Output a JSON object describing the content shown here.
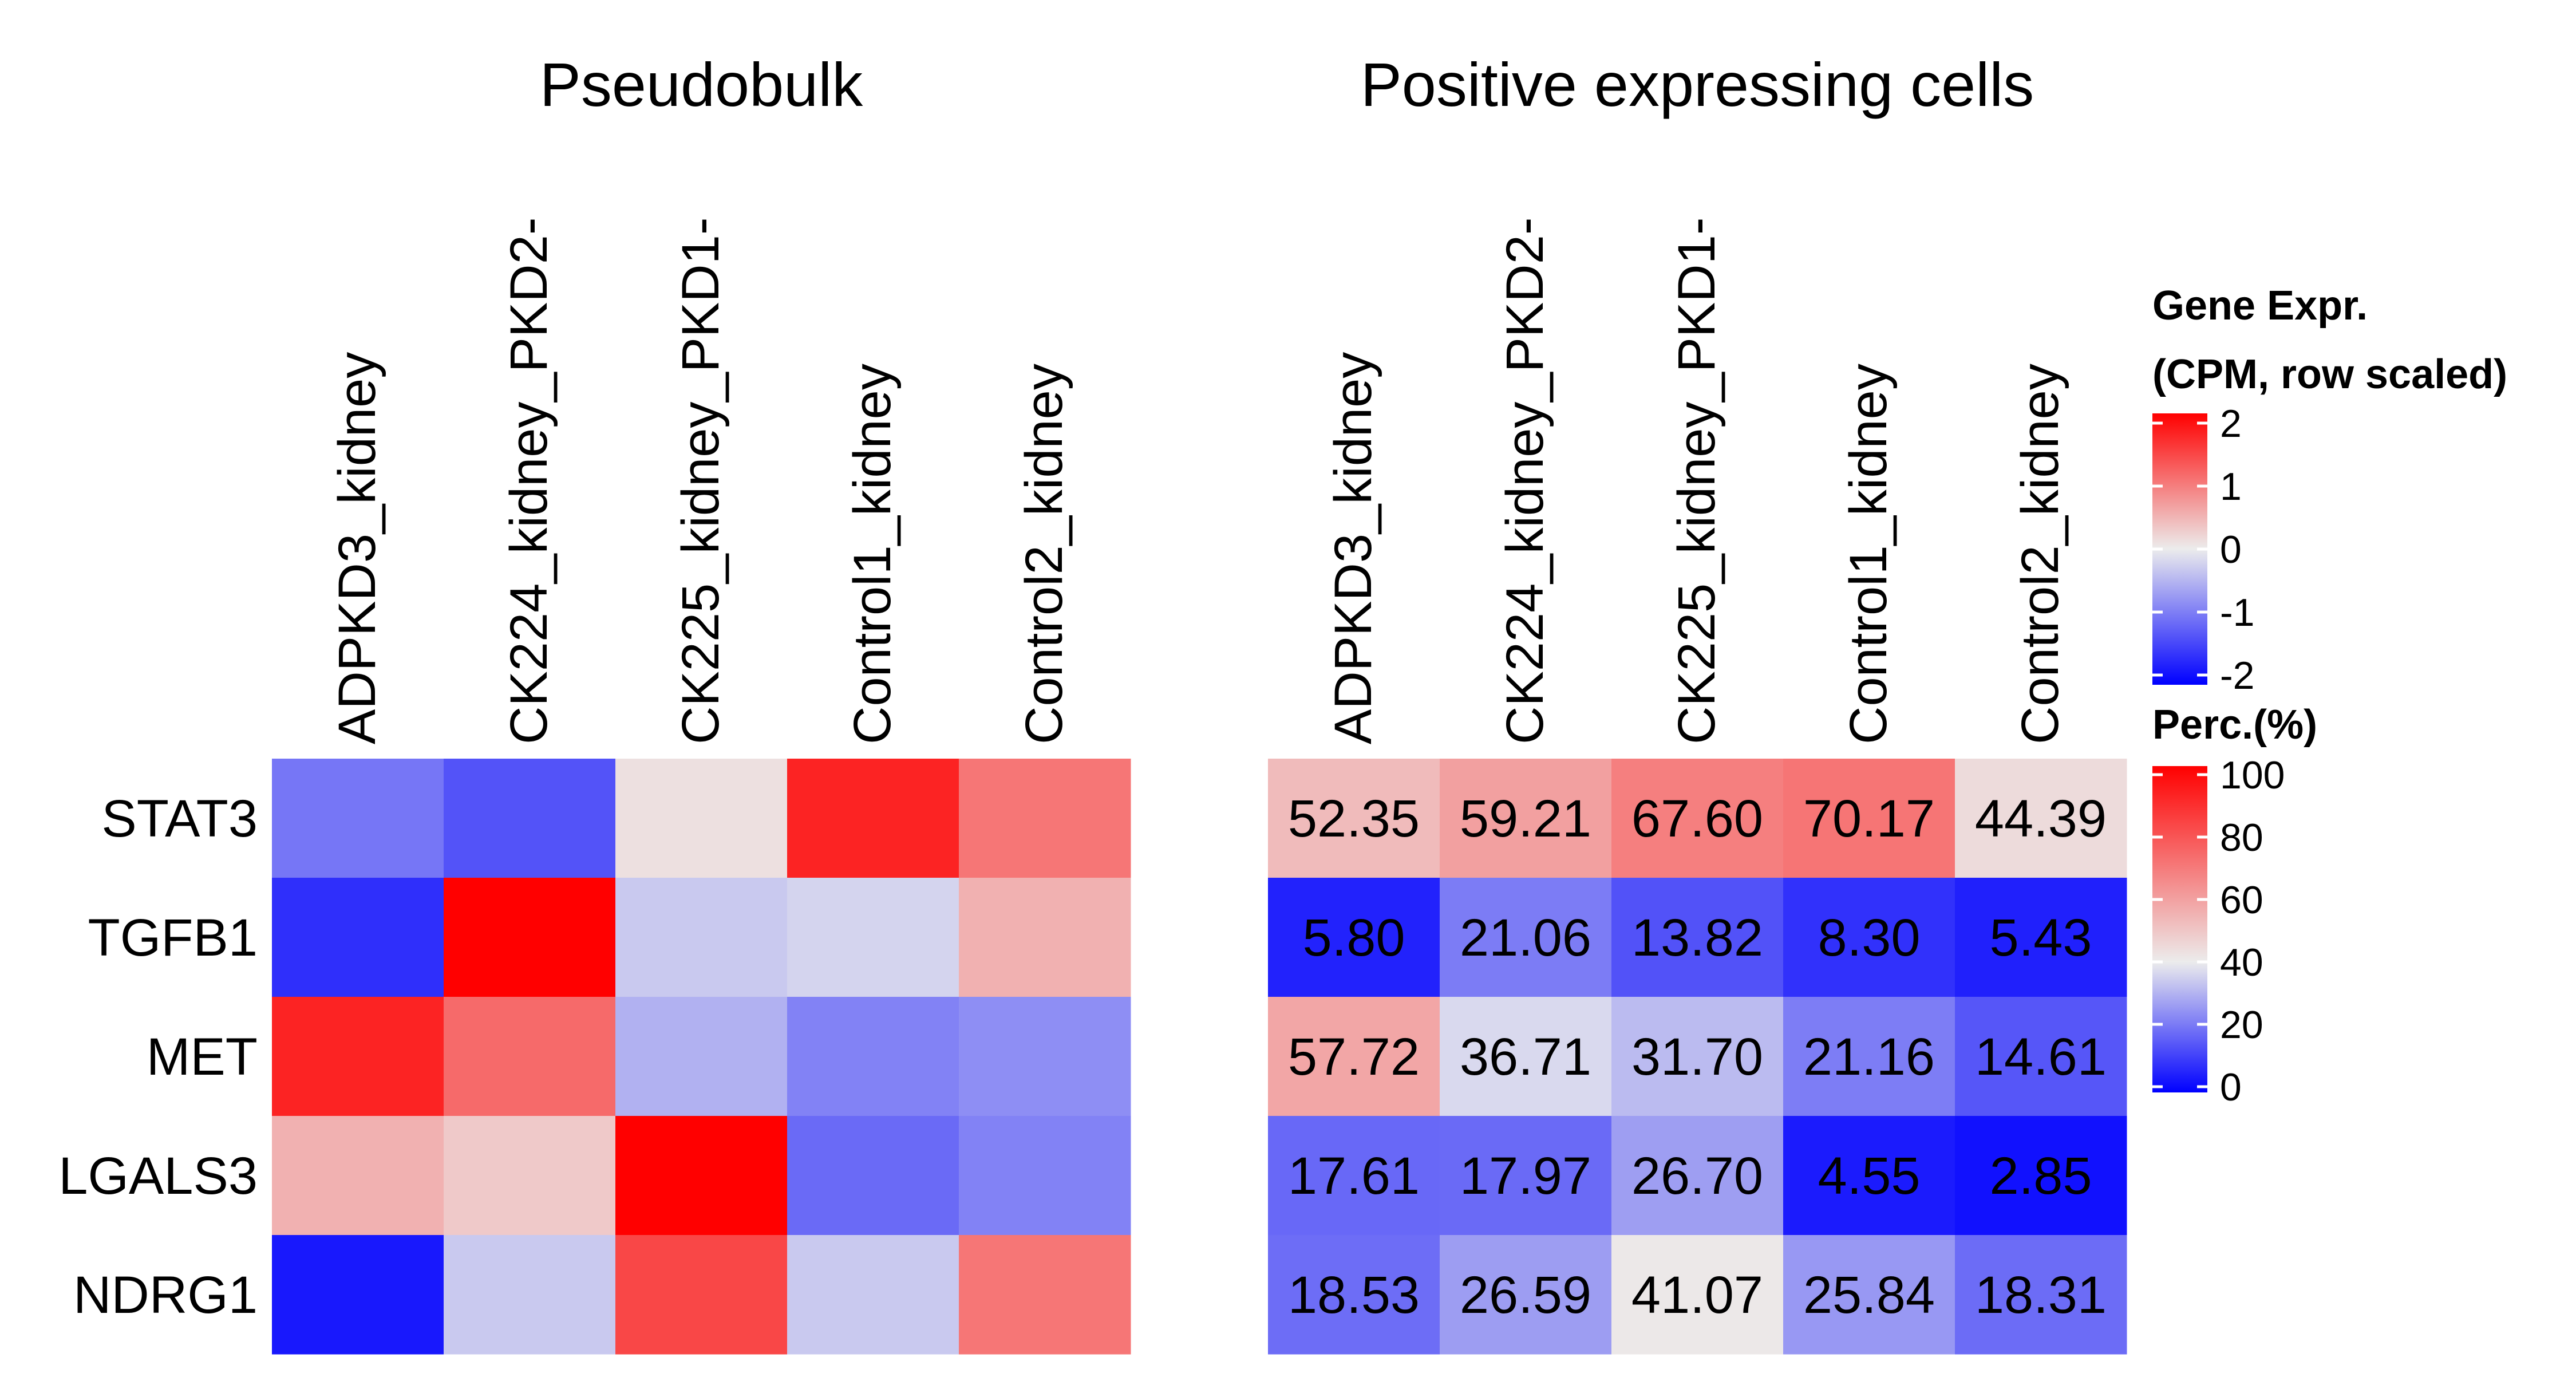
{
  "chart_data": [
    {
      "type": "heatmap",
      "title": "Pseudobulk",
      "columns": [
        "ADPKD3_kidney",
        "CK224_kidney_PKD2-",
        "CK225_kidney_PKD1-",
        "Control1_kidney",
        "Control2_kidney"
      ],
      "rows": [
        "STAT3",
        "TGFB1",
        "MET",
        "LGALS3",
        "NDRG1"
      ],
      "values": [
        [
          -1.0,
          -1.3,
          0.1,
          1.7,
          1.0
        ],
        [
          -1.6,
          2.0,
          -0.3,
          -0.2,
          0.5
        ],
        [
          1.7,
          1.1,
          -0.5,
          -0.9,
          -0.8
        ],
        [
          0.5,
          0.3,
          2.0,
          -1.1,
          -0.9
        ],
        [
          -1.8,
          -0.3,
          1.4,
          -0.3,
          1.0
        ]
      ],
      "legend": {
        "title_line1": "Gene Expr.",
        "title_line2": "(CPM, row scaled)",
        "range": [
          -2,
          2
        ],
        "ticks": [
          "2",
          "1",
          "0",
          "-1",
          "-2"
        ],
        "colors": {
          "low": "#0000ff",
          "mid": "#ececec",
          "high": "#ff0000"
        }
      }
    },
    {
      "type": "heatmap",
      "title": "Positive expressing cells",
      "columns": [
        "ADPKD3_kidney",
        "CK224_kidney_PKD2-",
        "CK225_kidney_PKD1-",
        "Control1_kidney",
        "Control2_kidney"
      ],
      "rows": [
        "STAT3",
        "TGFB1",
        "MET",
        "LGALS3",
        "NDRG1"
      ],
      "values": [
        [
          52.35,
          59.21,
          67.6,
          70.17,
          44.39
        ],
        [
          5.8,
          21.06,
          13.82,
          8.3,
          5.43
        ],
        [
          57.72,
          36.71,
          31.7,
          21.16,
          14.61
        ],
        [
          17.61,
          17.97,
          26.7,
          4.55,
          2.85
        ],
        [
          18.53,
          26.59,
          41.07,
          25.84,
          18.31
        ]
      ],
      "labels": [
        [
          "52.35",
          "59.21",
          "67.60",
          "70.17",
          "44.39"
        ],
        [
          "5.80",
          "21.06",
          "13.82",
          "8.30",
          "5.43"
        ],
        [
          "57.72",
          "36.71",
          "31.70",
          "21.16",
          "14.61"
        ],
        [
          "17.61",
          "17.97",
          "26.70",
          "4.55",
          "2.85"
        ],
        [
          "18.53",
          "26.59",
          "41.07",
          "25.84",
          "18.31"
        ]
      ],
      "legend": {
        "title_line1": "Perc.(%)",
        "range": [
          0,
          100
        ],
        "ticks": [
          "100",
          "80",
          "60",
          "40",
          "20",
          "0"
        ],
        "colors": {
          "low": "#0000ff",
          "mid": "#ececec",
          "high": "#ff0000"
        }
      }
    }
  ]
}
